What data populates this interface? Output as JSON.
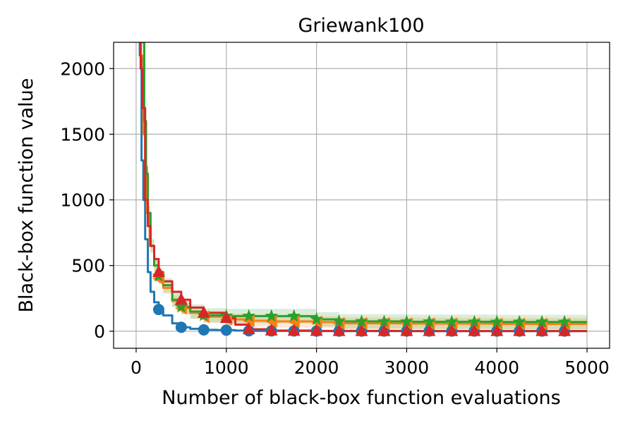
{
  "chart_data": {
    "type": "line",
    "title": "Griewank100",
    "xlabel": "Number of black-box function evaluations",
    "ylabel": "Black-box function value",
    "xlim": [
      -250,
      5250
    ],
    "ylim": [
      -130,
      2200
    ],
    "xticks": [
      0,
      1000,
      2000,
      3000,
      4000,
      5000
    ],
    "yticks": [
      0,
      500,
      1000,
      1500,
      2000
    ],
    "grid": true,
    "series": [
      {
        "color": "#1f77b4",
        "marker": "circle",
        "x": [
          0,
          40,
          60,
          80,
          100,
          130,
          160,
          200,
          250,
          300,
          400,
          500,
          600,
          750,
          900,
          1000,
          1100,
          1250,
          1500,
          1750,
          2000,
          2500,
          3000,
          3500,
          4000,
          4500,
          5000
        ],
        "y": [
          3000,
          2100,
          1300,
          1000,
          700,
          450,
          300,
          220,
          165,
          120,
          60,
          30,
          18,
          10,
          9,
          8,
          5,
          3,
          2,
          2,
          1,
          1,
          1,
          1,
          1,
          1,
          1
        ],
        "marker_x": [
          250,
          500,
          750,
          1000,
          1250,
          1500,
          1750,
          2000,
          2250,
          2500,
          2750,
          3000,
          3250,
          3500,
          3750,
          4000,
          4250,
          4500,
          4750
        ],
        "marker_y": [
          165,
          30,
          10,
          8,
          3,
          2,
          2,
          1,
          1,
          1,
          1,
          1,
          1,
          1,
          1,
          1,
          1,
          1,
          1
        ]
      },
      {
        "color": "#ff7f0e",
        "marker": "triangle-left",
        "band": 45,
        "x": [
          0,
          50,
          80,
          100,
          120,
          150,
          200,
          250,
          300,
          400,
          500,
          600,
          750,
          1000,
          1250,
          1500,
          2000,
          2250,
          3000,
          4000,
          5000
        ],
        "y": [
          3000,
          2100,
          1500,
          1250,
          900,
          650,
          500,
          400,
          330,
          230,
          175,
          140,
          110,
          90,
          80,
          75,
          70,
          60,
          58,
          55,
          55
        ],
        "marker_x": [
          250,
          500,
          750,
          1000,
          1250,
          1500,
          1750,
          2000,
          2250,
          2500,
          2750,
          3000,
          3250,
          3500,
          3750,
          4000,
          4250,
          4500,
          4750
        ],
        "marker_y": [
          400,
          175,
          110,
          90,
          80,
          75,
          72,
          70,
          60,
          60,
          59,
          58,
          57,
          57,
          56,
          55,
          55,
          55,
          55
        ]
      },
      {
        "color": "#2ca02c",
        "marker": "star",
        "band": 55,
        "x": [
          0,
          60,
          90,
          110,
          130,
          160,
          200,
          250,
          300,
          400,
          500,
          600,
          750,
          1000,
          1250,
          1500,
          1750,
          1950,
          2000,
          2250,
          3000,
          4000,
          5000
        ],
        "y": [
          3000,
          2200,
          1600,
          1200,
          900,
          650,
          500,
          420,
          350,
          240,
          185,
          150,
          120,
          115,
          115,
          115,
          115,
          115,
          90,
          75,
          72,
          70,
          70
        ],
        "marker_x": [
          250,
          500,
          750,
          1000,
          1250,
          1500,
          1750,
          2000,
          2250,
          2500,
          2750,
          3000,
          3250,
          3500,
          3750,
          4000,
          4250,
          4500,
          4750
        ],
        "marker_y": [
          420,
          185,
          120,
          115,
          115,
          115,
          115,
          90,
          75,
          74,
          73,
          72,
          72,
          71,
          71,
          70,
          70,
          70,
          70
        ]
      },
      {
        "color": "#d62728",
        "marker": "triangle-up",
        "x": [
          0,
          50,
          70,
          100,
          130,
          160,
          200,
          250,
          300,
          400,
          500,
          600,
          750,
          1000,
          1100,
          1250,
          1500,
          2000,
          3000,
          5000
        ],
        "y": [
          3000,
          2000,
          1700,
          1000,
          800,
          650,
          550,
          450,
          380,
          300,
          240,
          180,
          140,
          100,
          50,
          15,
          5,
          2,
          1,
          1
        ],
        "marker_x": [
          250,
          500,
          750,
          1000,
          1250,
          1500,
          1750,
          2000,
          2250,
          2500,
          2750,
          3000,
          3250,
          3500,
          3750,
          4000,
          4250,
          4500,
          4750
        ],
        "marker_y": [
          450,
          240,
          140,
          100,
          15,
          5,
          3,
          2,
          1,
          1,
          1,
          1,
          1,
          1,
          1,
          1,
          1,
          1,
          1
        ]
      }
    ]
  }
}
